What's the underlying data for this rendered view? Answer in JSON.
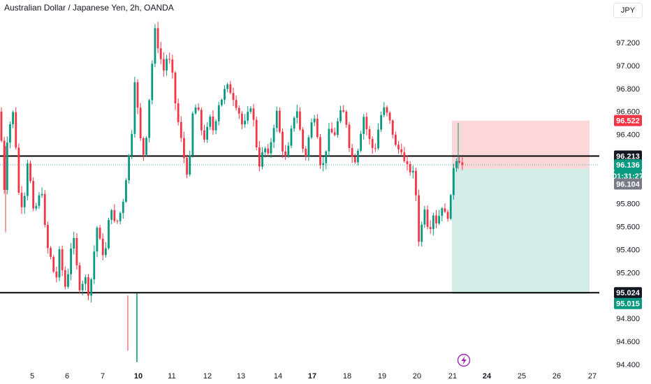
{
  "header": {
    "title": "Australian Dollar / Japanese Yen, 2h, OANDA",
    "currency": "JPY"
  },
  "chart_data": {
    "type": "candlestick",
    "title": "Australian Dollar / Japanese Yen, 2h, OANDA",
    "ylim": [
      94.4,
      97.4
    ],
    "y_ticks": [
      "97.200",
      "97.000",
      "96.800",
      "96.600",
      "96.400",
      "95.800",
      "95.600",
      "95.400",
      "95.200",
      "94.800",
      "94.600",
      "94.400"
    ],
    "x_ticks": [
      "5",
      "6",
      "7",
      "10",
      "11",
      "12",
      "13",
      "14",
      "17",
      "18",
      "19",
      "20",
      "21",
      "24",
      "25",
      "26",
      "27"
    ],
    "x_bold": [
      "10",
      "17",
      "24"
    ],
    "horizontal_lines": [
      96.213,
      95.024
    ],
    "price_tags": [
      {
        "label": "96.522",
        "value": 96.522,
        "bg": "#f23645",
        "fg": "#ffffff"
      },
      {
        "label": "96.213",
        "value": 96.213,
        "bg": "#131722",
        "fg": "#ffffff"
      },
      {
        "label": "96.136",
        "value": 96.136,
        "bg": "#089981",
        "fg": "#ffffff"
      },
      {
        "label": "01:31:27",
        "value": 96.04,
        "bg": "#089981",
        "fg": "#ffffff"
      },
      {
        "label": "96.104",
        "value": 95.97,
        "bg": "#787b86",
        "fg": "#ffffff"
      },
      {
        "label": "95.024",
        "value": 95.024,
        "bg": "#131722",
        "fg": "#ffffff"
      },
      {
        "label": "95.015",
        "value": 94.93,
        "bg": "#089981",
        "fg": "#ffffff"
      }
    ],
    "position": {
      "entry": 96.104,
      "stop": 96.522,
      "target": 95.015
    },
    "colors": {
      "up": "#089981",
      "down": "#f23645"
    },
    "anchors": [
      [
        0,
        96.6
      ],
      [
        3,
        96.22
      ],
      [
        6,
        95.92
      ],
      [
        10,
        96.35
      ],
      [
        14,
        96.48
      ],
      [
        18,
        96.62
      ],
      [
        22,
        96.38
      ],
      [
        27,
        95.88
      ],
      [
        32,
        95.78
      ],
      [
        36,
        95.92
      ],
      [
        40,
        96.22
      ],
      [
        44,
        95.95
      ],
      [
        48,
        95.7
      ],
      [
        54,
        95.82
      ],
      [
        60,
        95.92
      ],
      [
        66,
        95.45
      ],
      [
        72,
        95.34
      ],
      [
        80,
        95.12
      ],
      [
        86,
        95.42
      ],
      [
        92,
        95.04
      ],
      [
        98,
        95.22
      ],
      [
        104,
        95.56
      ],
      [
        110,
        95.24
      ],
      [
        116,
        95.0
      ],
      [
        120,
        95.22
      ],
      [
        126,
        95.02
      ],
      [
        132,
        95.18
      ],
      [
        138,
        95.62
      ],
      [
        144,
        95.44
      ],
      [
        150,
        95.32
      ],
      [
        156,
        95.66
      ],
      [
        160,
        95.78
      ],
      [
        164,
        95.62
      ],
      [
        170,
        95.66
      ],
      [
        176,
        95.82
      ],
      [
        182,
        96.1
      ],
      [
        188,
        96.35
      ],
      [
        193,
        96.9
      ],
      [
        198,
        96.55
      ],
      [
        204,
        96.18
      ],
      [
        210,
        96.42
      ],
      [
        216,
        96.9
      ],
      [
        222,
        97.3
      ],
      [
        228,
        97.12
      ],
      [
        234,
        96.95
      ],
      [
        240,
        97.1
      ],
      [
        246,
        96.95
      ],
      [
        252,
        96.62
      ],
      [
        258,
        96.4
      ],
      [
        264,
        96.18
      ],
      [
        270,
        96.02
      ],
      [
        276,
        96.58
      ],
      [
        282,
        96.66
      ],
      [
        288,
        96.45
      ],
      [
        294,
        96.35
      ],
      [
        300,
        96.55
      ],
      [
        306,
        96.42
      ],
      [
        312,
        96.66
      ],
      [
        318,
        96.72
      ],
      [
        324,
        96.82
      ],
      [
        330,
        96.78
      ],
      [
        336,
        96.7
      ],
      [
        342,
        96.6
      ],
      [
        348,
        96.45
      ],
      [
        354,
        96.55
      ],
      [
        360,
        96.68
      ],
      [
        366,
        96.35
      ],
      [
        372,
        96.12
      ],
      [
        378,
        96.3
      ],
      [
        384,
        96.2
      ],
      [
        390,
        96.42
      ],
      [
        396,
        96.6
      ],
      [
        402,
        96.35
      ],
      [
        408,
        96.18
      ],
      [
        414,
        96.3
      ],
      [
        420,
        96.55
      ],
      [
        426,
        96.62
      ],
      [
        432,
        96.3
      ],
      [
        438,
        96.22
      ],
      [
        444,
        96.45
      ],
      [
        450,
        96.58
      ],
      [
        456,
        96.35
      ],
      [
        460,
        96.05
      ],
      [
        466,
        96.25
      ],
      [
        472,
        96.45
      ],
      [
        478,
        96.38
      ],
      [
        484,
        96.52
      ],
      [
        490,
        96.62
      ],
      [
        496,
        96.5
      ],
      [
        502,
        96.22
      ],
      [
        508,
        96.18
      ],
      [
        514,
        96.32
      ],
      [
        520,
        96.58
      ],
      [
        526,
        96.42
      ],
      [
        532,
        96.28
      ],
      [
        538,
        96.3
      ],
      [
        544,
        96.55
      ],
      [
        550,
        96.62
      ],
      [
        556,
        96.55
      ],
      [
        562,
        96.42
      ],
      [
        568,
        96.25
      ],
      [
        574,
        96.3
      ],
      [
        580,
        96.12
      ],
      [
        586,
        96.1
      ],
      [
        592,
        96.05
      ],
      [
        596,
        95.85
      ],
      [
        600,
        95.45
      ],
      [
        604,
        95.62
      ],
      [
        608,
        95.78
      ],
      [
        614,
        95.55
      ],
      [
        620,
        95.72
      ],
      [
        626,
        95.62
      ],
      [
        632,
        95.8
      ],
      [
        638,
        95.68
      ],
      [
        644,
        95.72
      ],
      [
        648,
        96.1
      ],
      [
        652,
        96.18
      ],
      [
        656,
        96.22
      ],
      [
        660,
        96.14
      ],
      [
        664,
        96.13
      ]
    ]
  }
}
